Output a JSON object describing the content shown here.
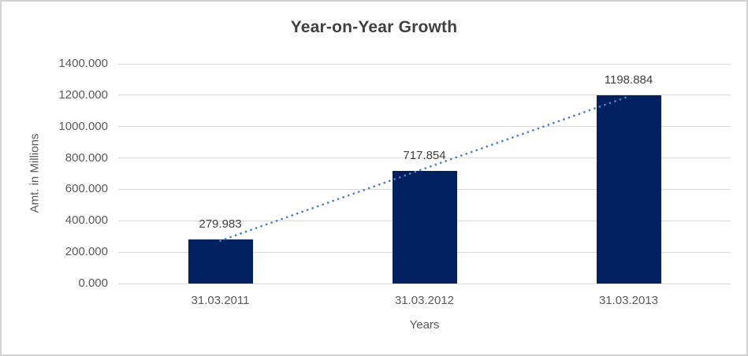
{
  "chart_data": {
    "type": "bar",
    "title": "Year-on-Year Growth",
    "xlabel": "Years",
    "ylabel": "Amt. in Millions",
    "categories": [
      "31.03.2011",
      "31.03.2012",
      "31.03.2013"
    ],
    "values": [
      279.983,
      717.854,
      1198.884
    ],
    "data_labels": [
      "279.983",
      "717.854",
      "1198.884"
    ],
    "ylim": [
      0,
      1400
    ],
    "ytick_step": 200,
    "ytick_labels": [
      "0.000",
      "200.000",
      "400.000",
      "600.000",
      "800.000",
      "1000.000",
      "1200.000",
      "1400.000"
    ],
    "grid": true,
    "legend": "none",
    "trendline": {
      "type": "linear",
      "style": "dotted"
    },
    "colors": {
      "bar": "#002060",
      "trendline": "#4f81bd",
      "gridline": "#d9d9d9",
      "axis_line": "#d9d9d9",
      "tick_text": "#595959",
      "label_text": "#404040",
      "title_text": "#404040",
      "frame_border": "#d2d2d2",
      "background": "#ffffff"
    }
  }
}
